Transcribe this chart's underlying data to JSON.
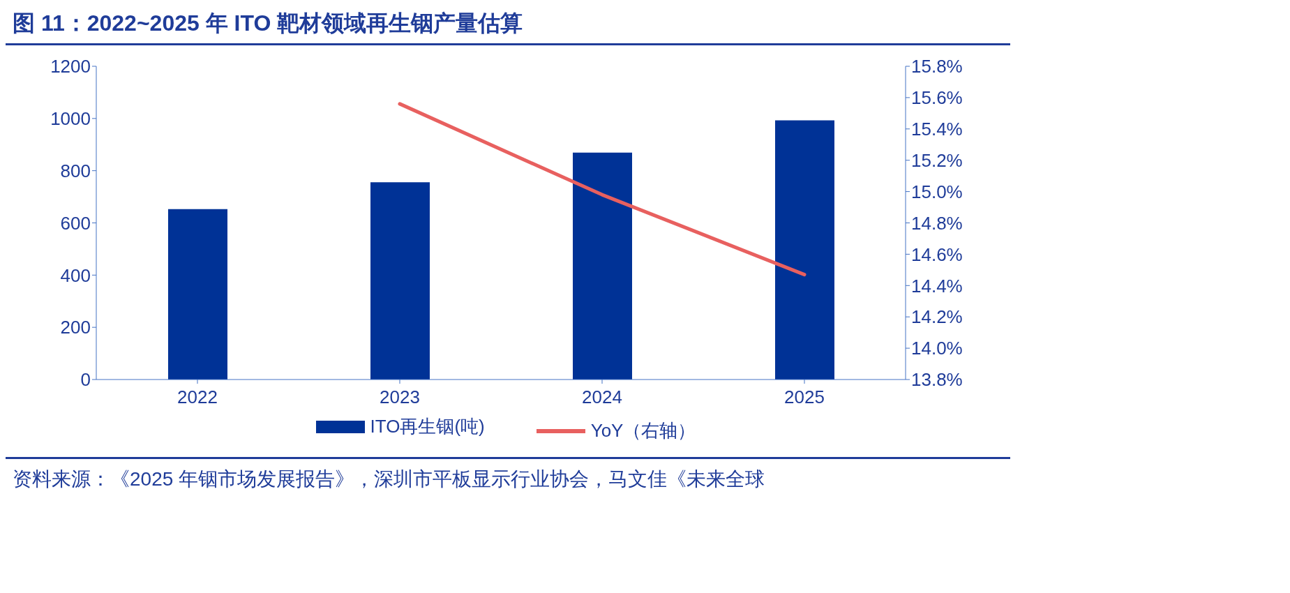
{
  "chart_data": {
    "type": "bar",
    "title": "图 11：2022~2025 年 ITO 靶材领域再生铟产量估算",
    "categories": [
      "2022",
      "2023",
      "2024",
      "2025"
    ],
    "series": [
      {
        "name": "ITO再生铟(吨)",
        "color": "#003296",
        "values": [
          653,
          756,
          869,
          993
        ]
      },
      {
        "name": "YoY（右轴）",
        "type": "line",
        "axis": "y2",
        "color": "#e8605f",
        "values": [
          null,
          15.56,
          14.98,
          14.47
        ]
      }
    ],
    "ylim": [
      0,
      1200
    ],
    "yticks": [
      0,
      200,
      400,
      600,
      800,
      1000,
      1200
    ],
    "y2lim": [
      13.8,
      15.8
    ],
    "y2ticks": [
      {
        "value": 13.8,
        "label": "13.8%"
      },
      {
        "value": 14.0,
        "label": "14.0%"
      },
      {
        "value": 14.2,
        "label": "14.2%"
      },
      {
        "value": 14.4,
        "label": "14.4%"
      },
      {
        "value": 14.6,
        "label": "14.6%"
      },
      {
        "value": 14.8,
        "label": "14.8%"
      },
      {
        "value": 15.0,
        "label": "15.0%"
      },
      {
        "value": 15.2,
        "label": "15.2%"
      },
      {
        "value": 15.4,
        "label": "15.4%"
      },
      {
        "value": 15.6,
        "label": "15.6%"
      },
      {
        "value": 15.8,
        "label": "15.8%"
      }
    ],
    "grid": false,
    "legend": "bottom",
    "marker": "none",
    "line_style": "solid",
    "annotations": [
      "资料来源：《2025 年铟市场发展报告》，深圳市平板显示行业协会，马文佳《未来全球"
    ]
  }
}
